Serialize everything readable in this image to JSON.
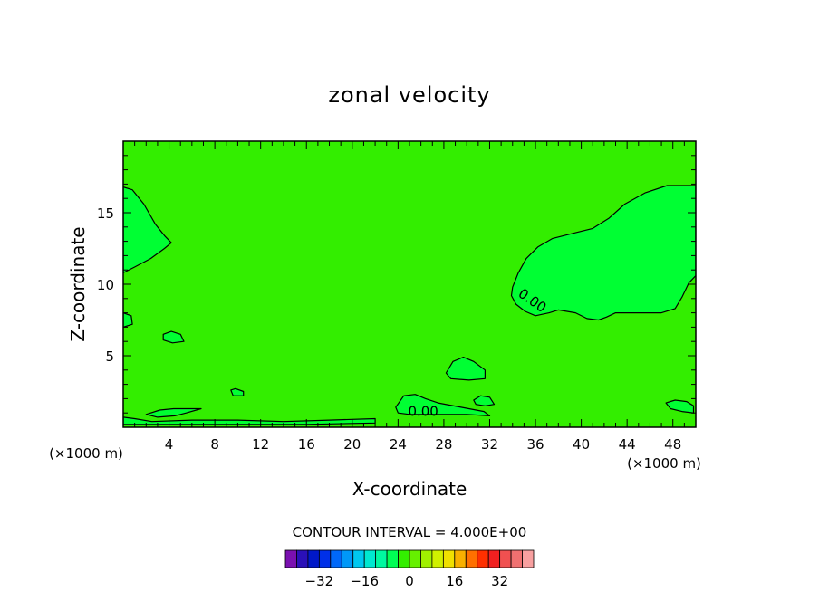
{
  "chart_data": {
    "type": "contour",
    "title": "zonal velocity",
    "xlabel": "X-coordinate",
    "ylabel": "Z-coordinate",
    "x_unit": "(×1000 m)",
    "xlim": [
      0,
      50
    ],
    "ylim": [
      0,
      20
    ],
    "x_ticks": [
      4,
      8,
      12,
      16,
      20,
      24,
      28,
      32,
      36,
      40,
      44,
      48
    ],
    "y_ticks": [
      5,
      10,
      15
    ],
    "contour_interval_label": "CONTOUR INTERVAL = 4.000E+00",
    "contour_label": "0.00",
    "background_fill": "#33ee00",
    "positive_fill": "#00ff33",
    "regions": [
      {
        "name": "upper-left",
        "points": [
          [
            0,
            16.8
          ],
          [
            0.8,
            16.6
          ],
          [
            1.8,
            15.6
          ],
          [
            2.8,
            14.2
          ],
          [
            3.6,
            13.4
          ],
          [
            4.2,
            12.9
          ],
          [
            3.6,
            12.5
          ],
          [
            2.4,
            11.8
          ],
          [
            1.0,
            11.2
          ],
          [
            0,
            10.8
          ]
        ]
      },
      {
        "name": "upper-right",
        "points": [
          [
            50,
            16.9
          ],
          [
            47.5,
            16.9
          ],
          [
            45.6,
            16.4
          ],
          [
            43.8,
            15.6
          ],
          [
            42.4,
            14.6
          ],
          [
            41.0,
            13.9
          ],
          [
            39.5,
            13.6
          ],
          [
            37.5,
            13.2
          ],
          [
            36.2,
            12.6
          ],
          [
            35.2,
            11.8
          ],
          [
            34.5,
            10.8
          ],
          [
            34.0,
            9.8
          ],
          [
            33.9,
            9.2
          ],
          [
            34.3,
            8.6
          ],
          [
            35.1,
            8.1
          ],
          [
            36.0,
            7.8
          ],
          [
            37.2,
            8.0
          ],
          [
            38.0,
            8.2
          ],
          [
            39.5,
            8.0
          ],
          [
            40.5,
            7.6
          ],
          [
            41.5,
            7.5
          ],
          [
            42.2,
            7.7
          ],
          [
            43.0,
            8.0
          ],
          [
            45.0,
            8.0
          ],
          [
            47.0,
            8.0
          ],
          [
            48.2,
            8.3
          ],
          [
            48.8,
            9.1
          ],
          [
            49.4,
            10.1
          ],
          [
            50,
            10.6
          ]
        ]
      },
      {
        "name": "bump-28",
        "points": [
          [
            28.2,
            3.8
          ],
          [
            28.8,
            4.6
          ],
          [
            29.7,
            4.9
          ],
          [
            30.6,
            4.6
          ],
          [
            31.6,
            4.0
          ],
          [
            31.6,
            3.4
          ],
          [
            30.2,
            3.3
          ],
          [
            28.6,
            3.4
          ]
        ]
      },
      {
        "name": "blob-5",
        "points": [
          [
            3.5,
            6.5
          ],
          [
            4.2,
            6.7
          ],
          [
            5.0,
            6.5
          ],
          [
            5.3,
            6.0
          ],
          [
            4.3,
            5.9
          ],
          [
            3.5,
            6.1
          ]
        ]
      },
      {
        "name": "edge-blob-left",
        "points": [
          [
            0,
            8.0
          ],
          [
            0.7,
            7.8
          ],
          [
            0.8,
            7.2
          ],
          [
            0,
            7.0
          ]
        ]
      },
      {
        "name": "blob-10",
        "points": [
          [
            9.4,
            2.6
          ],
          [
            9.8,
            2.7
          ],
          [
            10.5,
            2.5
          ],
          [
            10.5,
            2.2
          ],
          [
            9.6,
            2.2
          ]
        ]
      },
      {
        "name": "band-24",
        "points": [
          [
            23.8,
            1.4
          ],
          [
            24.5,
            2.2
          ],
          [
            25.5,
            2.3
          ],
          [
            26.4,
            2.0
          ],
          [
            27.5,
            1.7
          ],
          [
            29.5,
            1.4
          ],
          [
            31.5,
            1.1
          ],
          [
            32.0,
            0.8
          ],
          [
            30.0,
            0.9
          ],
          [
            27.5,
            0.9
          ],
          [
            25.0,
            0.9
          ],
          [
            24.0,
            1.0
          ]
        ]
      },
      {
        "name": "blob-31",
        "points": [
          [
            30.6,
            1.9
          ],
          [
            31.2,
            2.2
          ],
          [
            32.0,
            2.1
          ],
          [
            32.4,
            1.6
          ],
          [
            31.6,
            1.5
          ],
          [
            30.8,
            1.6
          ]
        ]
      },
      {
        "name": "blob-right-bottom",
        "points": [
          [
            47.4,
            1.7
          ],
          [
            48.2,
            1.9
          ],
          [
            49.2,
            1.8
          ],
          [
            49.8,
            1.5
          ],
          [
            49.8,
            1.0
          ],
          [
            48.8,
            1.1
          ],
          [
            47.8,
            1.3
          ]
        ]
      },
      {
        "name": "bottom-strip-left",
        "points": [
          [
            0,
            0.7
          ],
          [
            1.0,
            0.6
          ],
          [
            2.5,
            0.4
          ],
          [
            6.0,
            0.5
          ],
          [
            10.0,
            0.5
          ],
          [
            14.0,
            0.4
          ],
          [
            18.0,
            0.5
          ],
          [
            22.0,
            0.6
          ],
          [
            22.0,
            0.3
          ],
          [
            16.0,
            0.2
          ],
          [
            8.0,
            0.2
          ],
          [
            2.0,
            0.2
          ],
          [
            0,
            0.2
          ]
        ]
      },
      {
        "name": "bottom-strip-wave",
        "points": [
          [
            2.0,
            0.9
          ],
          [
            3.2,
            1.2
          ],
          [
            4.4,
            1.3
          ],
          [
            6.8,
            1.3
          ],
          [
            5.5,
            1.0
          ],
          [
            4.5,
            0.8
          ],
          [
            3.0,
            0.7
          ]
        ]
      }
    ],
    "labels": [
      {
        "text": "0.00",
        "x": 35.5,
        "y": 8.6,
        "rotate": 35
      },
      {
        "text": "0.00",
        "x": 26.2,
        "y": 0.8,
        "rotate": 0
      }
    ],
    "colorbar": {
      "colors": [
        "#7a10b0",
        "#2a10b8",
        "#0018c8",
        "#0030e8",
        "#0068f8",
        "#0098f8",
        "#00c8f0",
        "#00e8d0",
        "#00f8a0",
        "#00ff55",
        "#33ee00",
        "#66f000",
        "#a0f000",
        "#d0f000",
        "#f0e000",
        "#f8b000",
        "#ff7000",
        "#ff3000",
        "#f02020",
        "#f05050",
        "#f07070",
        "#f8a0a0"
      ],
      "tick_labels": [
        "-32",
        "-16",
        "0",
        "16",
        "32"
      ],
      "tick_values": [
        -32,
        -16,
        0,
        16,
        32
      ],
      "vmin": -44,
      "vmax": 44
    }
  }
}
